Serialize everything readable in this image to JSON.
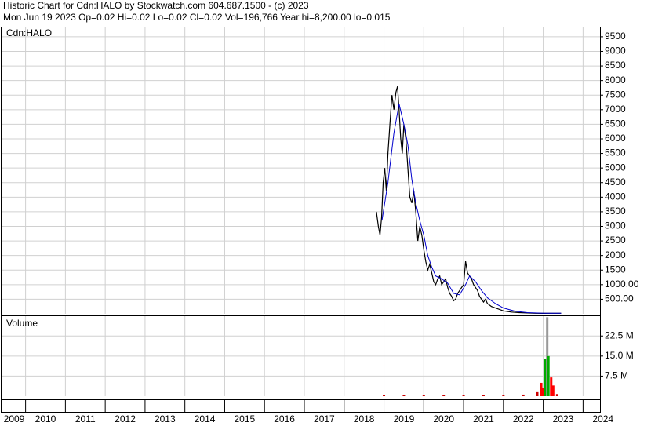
{
  "header": {
    "title": "Historic Chart for Cdn:HALO by Stockwatch.com 604.687.1500 - (c) 2023",
    "quote": "Mon Jun 19 2023  Op=0.02  Hi=0.02  Lo=0.02  Cl=0.02  Vol=196,766  Year hi=8,200.00  lo=0.015"
  },
  "chart_data": [
    {
      "type": "line",
      "title": "Cdn:HALO",
      "grid": true,
      "xlim": [
        2009.397,
        2024.426
      ],
      "ylim": [
        0,
        9820
      ],
      "yticks": [
        {
          "value": 500,
          "label": "500.00"
        },
        {
          "value": 1000,
          "label": "1000.00"
        },
        1500,
        2000,
        2500,
        3000,
        3500,
        4000,
        4500,
        5000,
        5500,
        6000,
        6500,
        7000,
        7500,
        8000,
        8500,
        9000,
        9500
      ],
      "series": [
        {
          "color": "#000000",
          "x": [
            2018.81,
            2018.86,
            2018.9,
            2018.94,
            2018.98,
            2019.02,
            2019.06,
            2019.1,
            2019.15,
            2019.2,
            2019.25,
            2019.3,
            2019.34,
            2019.38,
            2019.42,
            2019.46,
            2019.5,
            2019.55,
            2019.6,
            2019.65,
            2019.7,
            2019.75,
            2019.8,
            2019.85,
            2019.9,
            2019.95,
            2020.0,
            2020.05,
            2020.1,
            2020.15,
            2020.2,
            2020.25,
            2020.3,
            2020.35,
            2020.4,
            2020.45,
            2020.5,
            2020.55,
            2020.6,
            2020.65,
            2020.7,
            2020.75,
            2020.8,
            2020.85,
            2020.9,
            2020.95,
            2021.0,
            2021.05,
            2021.1,
            2021.15,
            2021.2,
            2021.25,
            2021.3,
            2021.35,
            2021.4,
            2021.45,
            2021.5,
            2021.55,
            2021.6,
            2021.7,
            2021.8,
            2021.9,
            2022.0,
            2022.2,
            2022.4,
            2022.6,
            2022.8,
            2023.0,
            2023.2,
            2023.45
          ],
          "values": [
            3500,
            3000,
            2700,
            3300,
            4500,
            5000,
            4200,
            5500,
            6500,
            7500,
            7000,
            7600,
            7800,
            7000,
            6000,
            5500,
            6500,
            6000,
            5000,
            4000,
            3800,
            4200,
            3500,
            2500,
            3000,
            2700,
            2200,
            1800,
            1500,
            1700,
            1400,
            1100,
            1000,
            1200,
            1300,
            1000,
            1100,
            1200,
            900,
            700,
            600,
            450,
            500,
            700,
            800,
            900,
            1000,
            1800,
            1400,
            1300,
            1200,
            1000,
            900,
            800,
            600,
            500,
            400,
            500,
            350,
            250,
            200,
            150,
            100,
            60,
            40,
            30,
            20,
            15,
            20,
            20
          ]
        },
        {
          "color": "#0000cc",
          "x": [
            2018.95,
            2019.1,
            2019.25,
            2019.38,
            2019.5,
            2019.6,
            2019.7,
            2019.8,
            2019.9,
            2020.0,
            2020.1,
            2020.2,
            2020.3,
            2020.45,
            2020.6,
            2020.75,
            2020.9,
            2021.05,
            2021.15,
            2021.3,
            2021.45,
            2021.6,
            2021.8,
            2022.0,
            2022.3,
            2022.6,
            2023.0,
            2023.45
          ],
          "values": [
            3200,
            4500,
            6200,
            7200,
            6500,
            5800,
            4600,
            3800,
            3200,
            2700,
            2000,
            1600,
            1300,
            1200,
            1050,
            700,
            650,
            1000,
            1300,
            1100,
            800,
            550,
            350,
            200,
            90,
            40,
            20,
            18
          ]
        }
      ]
    },
    {
      "type": "bar",
      "title": "Volume",
      "grid": true,
      "xlim": [
        2009.397,
        2024.426
      ],
      "ylim": [
        0,
        29900000
      ],
      "xticks": [
        2009,
        2010,
        2011,
        2012,
        2013,
        2014,
        2015,
        2016,
        2017,
        2018,
        2019,
        2020,
        2021,
        2022,
        2023,
        2024
      ],
      "yticks": [
        {
          "value": 7500000,
          "label": "7.5 M"
        },
        {
          "value": 15000000,
          "label": "15.0 M"
        },
        {
          "value": 22500000,
          "label": "22.5 M"
        }
      ],
      "x": [
        2019.0,
        2019.5,
        2020.0,
        2020.5,
        2021.0,
        2021.5,
        2022.0,
        2022.5,
        2022.85,
        2022.95,
        2023.0,
        2023.05,
        2023.1,
        2023.13,
        2023.2,
        2023.25,
        2023.35
      ],
      "values": [
        400000,
        300000,
        350000,
        300000,
        500000,
        300000,
        400000,
        600000,
        1500000,
        5000000,
        3000000,
        14000000,
        29500000,
        15000000,
        7000000,
        4000000,
        800000
      ],
      "colors": [
        "#cc0000",
        "#cc0000",
        "#cc0000",
        "#cc0000",
        "#cc0000",
        "#cc0000",
        "#cc0000",
        "#cc0000",
        "#cc0000",
        "#ff0000",
        "#ff0000",
        "#00aa00",
        "#999999",
        "#00aa00",
        "#ff0000",
        "#ff0000",
        "#cc0000"
      ]
    }
  ]
}
